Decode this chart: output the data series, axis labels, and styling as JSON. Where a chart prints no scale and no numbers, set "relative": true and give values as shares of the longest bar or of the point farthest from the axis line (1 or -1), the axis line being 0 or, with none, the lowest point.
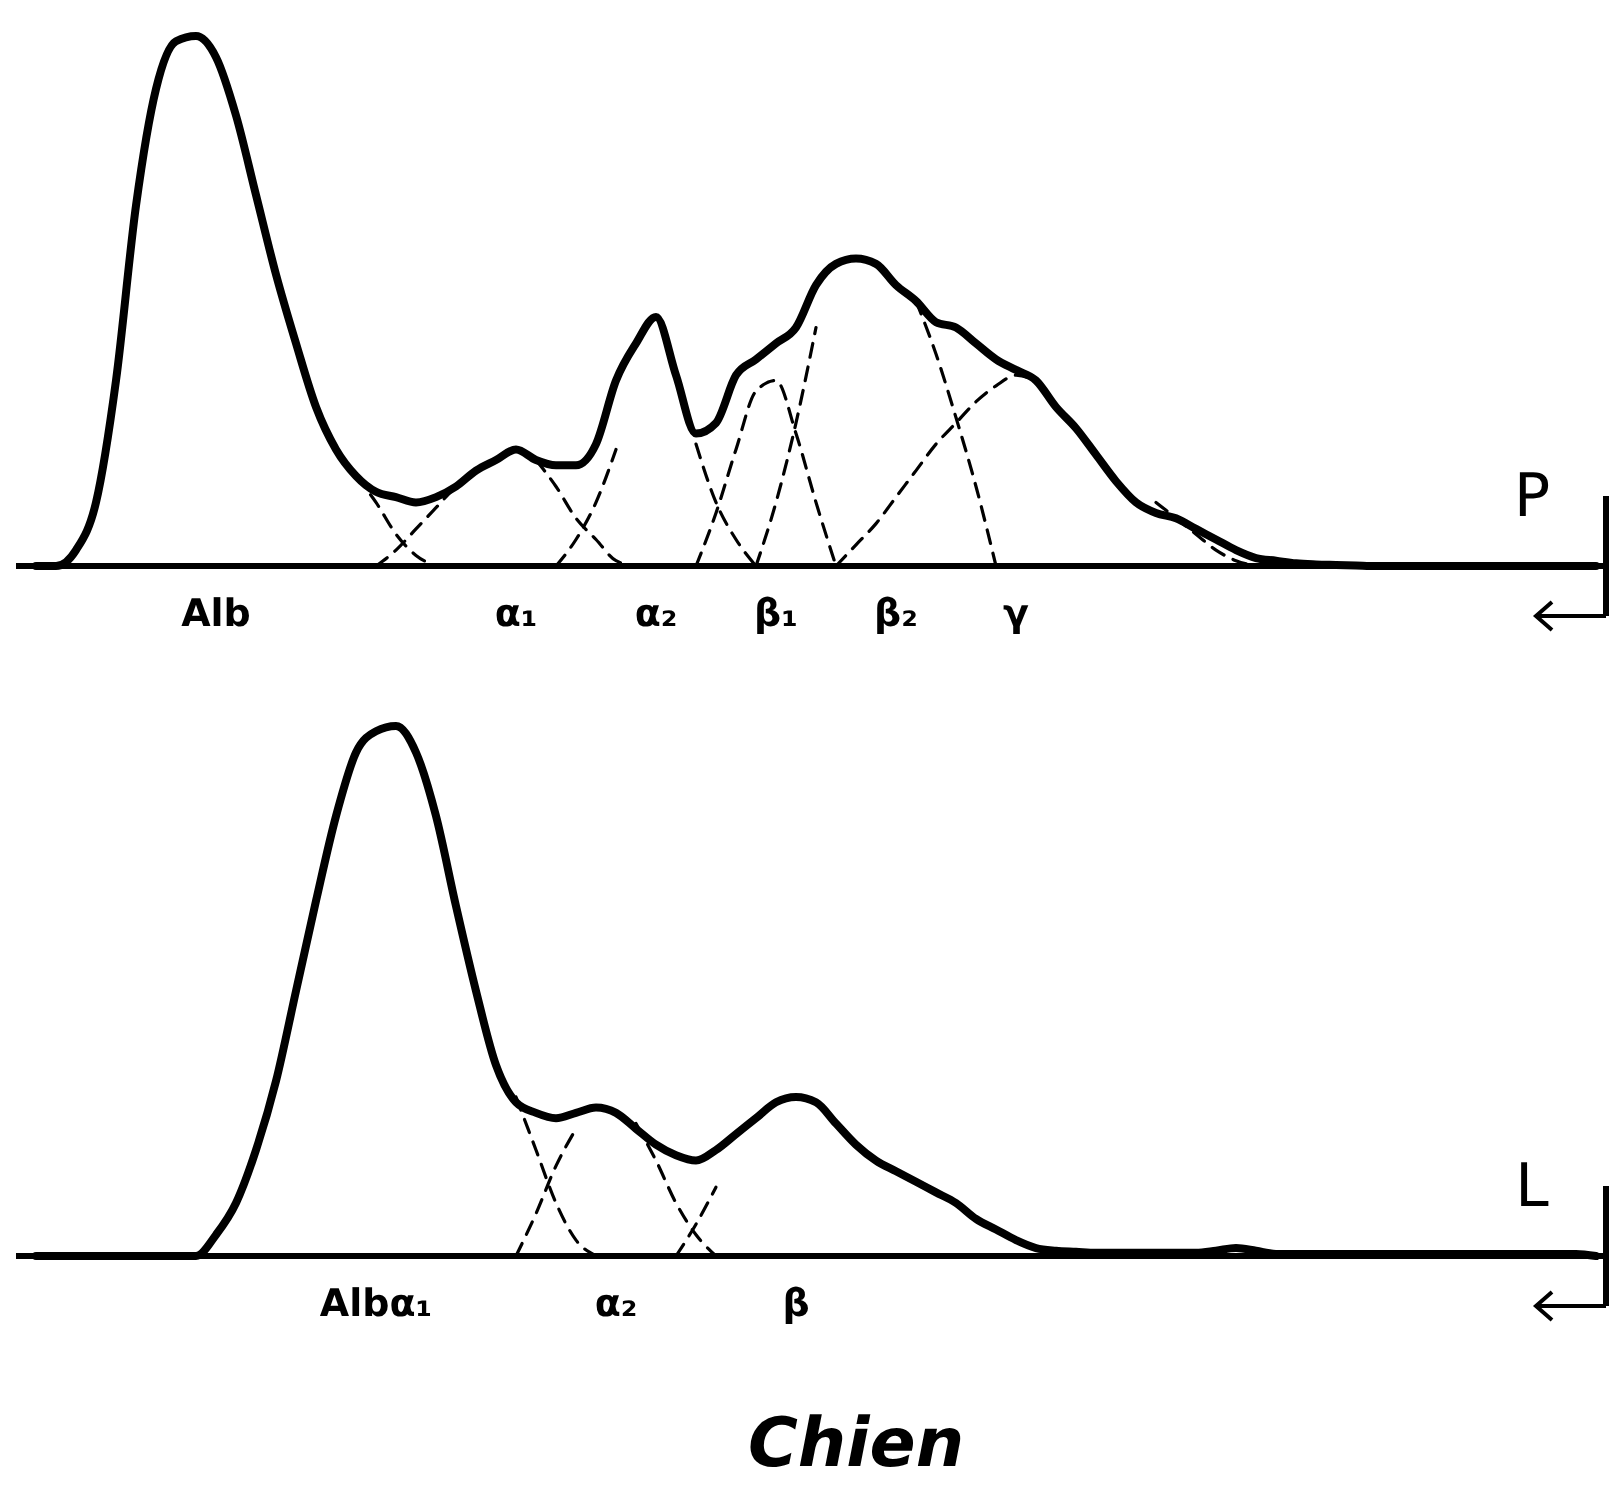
{
  "chart_data": [
    {
      "type": "line",
      "relative": true,
      "annotations": [
        "P"
      ],
      "categories": [
        null,
        null,
        null,
        null,
        null,
        null,
        null,
        null,
        null,
        "Alb",
        null,
        null,
        null,
        null,
        null,
        null,
        null,
        null,
        null,
        null,
        null,
        null,
        null,
        null,
        "α₁",
        null,
        null,
        null,
        null,
        null,
        null,
        "α₂",
        null,
        null,
        null,
        null,
        null,
        "β₁",
        null,
        null,
        null,
        null,
        null,
        "β₂",
        null,
        null,
        null,
        null,
        null,
        "γ",
        null,
        null,
        null,
        null,
        null,
        null,
        null,
        null,
        null,
        null,
        null,
        null,
        null,
        null,
        null,
        null,
        null,
        null,
        null,
        null,
        null,
        null,
        null,
        null,
        null,
        null,
        null,
        null,
        null
      ],
      "series": [
        {
          "color": "#000000",
          "line_style": "solid",
          "values": [
            0,
            0,
            0.03,
            0.12,
            0.35,
            0.68,
            0.9,
            0.99,
            1.0,
            0.96,
            0.85,
            0.7,
            0.55,
            0.42,
            0.3,
            0.22,
            0.17,
            0.14,
            0.13,
            0.12,
            0.13,
            0.15,
            0.18,
            0.2,
            0.22,
            0.2,
            0.19,
            0.19,
            0.23,
            0.35,
            0.42,
            0.47,
            0.36,
            0.25,
            0.27,
            0.36,
            0.39,
            0.42,
            0.45,
            0.53,
            0.57,
            0.58,
            0.57,
            0.53,
            0.5,
            0.46,
            0.45,
            0.42,
            0.39,
            0.37,
            0.35,
            0.3,
            0.26,
            0.21,
            0.16,
            0.12,
            0.1,
            0.09,
            0.07,
            0.05,
            0.03,
            0.015,
            0.01,
            0.005,
            0.003,
            0.002,
            0.001,
            0,
            0,
            0,
            0,
            0,
            0,
            0,
            0,
            0,
            0,
            0,
            0
          ]
        },
        {
          "color": "#000000",
          "line_style": "dashed",
          "values": [
            null,
            null,
            null,
            null,
            null,
            null,
            null,
            null,
            null,
            null,
            null,
            null,
            null,
            null,
            null,
            null,
            0.17,
            0.12,
            0.06,
            0.02,
            0,
            null,
            null,
            null,
            null,
            null,
            null,
            null,
            null,
            null,
            null,
            null,
            null,
            null,
            null,
            null,
            null,
            null,
            null,
            null,
            null,
            null,
            null,
            null,
            null,
            null,
            null,
            null,
            null,
            null,
            null,
            null,
            null,
            null,
            null,
            null,
            null,
            null,
            null,
            null,
            null,
            null,
            null,
            null,
            null,
            null,
            null,
            null,
            null,
            null,
            null,
            null,
            null,
            null,
            null,
            null,
            null,
            null,
            null
          ]
        },
        {
          "color": "#000000",
          "line_style": "dashed",
          "values": [
            null,
            null,
            null,
            null,
            null,
            null,
            null,
            null,
            null,
            null,
            null,
            null,
            null,
            null,
            null,
            null,
            null,
            0,
            0.03,
            0.07,
            0.11,
            0.15,
            0.18,
            null,
            null,
            0.2,
            0.15,
            0.09,
            0.05,
            0.01,
            0,
            null,
            null,
            null,
            null,
            null,
            null,
            null,
            null,
            null,
            null,
            null,
            null,
            null,
            null,
            null,
            null,
            null,
            null,
            null,
            null,
            null,
            null,
            null,
            null,
            null,
            null,
            null,
            null,
            null,
            null,
            null,
            null,
            null,
            null,
            null,
            null,
            null,
            null,
            null,
            null,
            null,
            null,
            null,
            null,
            null,
            null,
            null,
            null
          ]
        },
        {
          "color": "#000000",
          "line_style": "dashed",
          "values": [
            null,
            null,
            null,
            null,
            null,
            null,
            null,
            null,
            null,
            null,
            null,
            null,
            null,
            null,
            null,
            null,
            null,
            null,
            null,
            null,
            null,
            null,
            null,
            null,
            null,
            null,
            0,
            0.05,
            0.12,
            0.22,
            null,
            null,
            null,
            0.23,
            0.12,
            0.05,
            0,
            null,
            null,
            null,
            null,
            null,
            null,
            null,
            null,
            null,
            null,
            null,
            null,
            null,
            null,
            null,
            null,
            null,
            null,
            null,
            null,
            null,
            null,
            null,
            null,
            null,
            null,
            null,
            null,
            null,
            null,
            null,
            null,
            null,
            null,
            null,
            null,
            null,
            null,
            null,
            null,
            null,
            null
          ]
        },
        {
          "color": "#000000",
          "line_style": "dashed",
          "values": [
            null,
            null,
            null,
            null,
            null,
            null,
            null,
            null,
            null,
            null,
            null,
            null,
            null,
            null,
            null,
            null,
            null,
            null,
            null,
            null,
            null,
            null,
            null,
            null,
            null,
            null,
            null,
            null,
            null,
            null,
            null,
            null,
            null,
            0,
            0.1,
            0.22,
            0.33,
            0.35,
            0.25,
            0.12,
            0,
            null,
            null,
            null,
            null,
            null,
            null,
            null,
            null,
            null,
            null,
            null,
            null,
            null,
            null,
            null,
            null,
            null,
            null,
            null,
            null,
            null,
            null,
            null,
            null,
            null,
            null,
            null,
            null,
            null,
            null,
            null,
            null,
            null,
            null,
            null,
            null,
            null,
            null
          ]
        },
        {
          "color": "#000000",
          "line_style": "dashed",
          "values": [
            null,
            null,
            null,
            null,
            null,
            null,
            null,
            null,
            null,
            null,
            null,
            null,
            null,
            null,
            null,
            null,
            null,
            null,
            null,
            null,
            null,
            null,
            null,
            null,
            null,
            null,
            null,
            null,
            null,
            null,
            null,
            null,
            null,
            null,
            null,
            null,
            0,
            0.12,
            0.27,
            0.45,
            null,
            null,
            null,
            null,
            0.5,
            0.4,
            0.28,
            0.15,
            0,
            null,
            null,
            null,
            null,
            null,
            null,
            null,
            null,
            null,
            null,
            null,
            null,
            null,
            null,
            null,
            null,
            null,
            null,
            null,
            null,
            null,
            null,
            null,
            null,
            null,
            null,
            null,
            null,
            null,
            null
          ]
        },
        {
          "color": "#000000",
          "line_style": "dashed",
          "values": [
            null,
            null,
            null,
            null,
            null,
            null,
            null,
            null,
            null,
            null,
            null,
            null,
            null,
            null,
            null,
            null,
            null,
            null,
            null,
            null,
            null,
            null,
            null,
            null,
            null,
            null,
            null,
            null,
            null,
            null,
            null,
            null,
            null,
            null,
            null,
            null,
            null,
            null,
            null,
            null,
            0,
            0.04,
            0.08,
            0.13,
            0.18,
            0.23,
            0.27,
            0.31,
            0.34,
            0.36,
            0.35,
            null,
            null,
            null,
            null,
            null,
            0.12,
            0.09,
            0.06,
            0.03,
            0.01,
            0,
            null,
            null,
            null,
            null,
            null,
            null,
            null,
            null,
            null,
            null,
            null,
            null,
            null,
            null,
            null,
            null,
            null
          ]
        }
      ]
    },
    {
      "type": "line",
      "relative": true,
      "annotations": [
        "L"
      ],
      "xlabel": "Chien",
      "categories": [
        null,
        null,
        null,
        null,
        null,
        null,
        null,
        null,
        null,
        null,
        null,
        null,
        null,
        null,
        null,
        null,
        null,
        "Albα₁",
        null,
        null,
        null,
        null,
        null,
        null,
        null,
        null,
        null,
        null,
        null,
        "α₂",
        null,
        null,
        null,
        null,
        null,
        null,
        null,
        null,
        "β",
        null,
        null,
        null,
        null,
        null,
        null,
        null,
        null,
        null,
        null,
        null,
        null,
        null,
        null,
        null,
        null,
        null,
        null,
        null,
        null,
        null,
        null,
        null,
        null,
        null,
        null,
        null,
        null,
        null,
        null,
        null,
        null,
        null,
        null,
        null,
        null,
        null,
        null,
        null,
        null
      ],
      "series": [
        {
          "color": "#000000",
          "line_style": "solid",
          "values": [
            0,
            0,
            0,
            0,
            0,
            0,
            0,
            0,
            0,
            0.04,
            0.1,
            0.2,
            0.33,
            0.5,
            0.67,
            0.83,
            0.95,
            0.99,
            1.0,
            0.95,
            0.83,
            0.66,
            0.5,
            0.36,
            0.29,
            0.27,
            0.26,
            0.27,
            0.28,
            0.27,
            0.24,
            0.21,
            0.19,
            0.18,
            0.2,
            0.23,
            0.26,
            0.29,
            0.3,
            0.29,
            0.25,
            0.21,
            0.18,
            0.16,
            0.14,
            0.12,
            0.1,
            0.07,
            0.05,
            0.03,
            0.015,
            0.01,
            0.008,
            0.006,
            0.006,
            0.006,
            0.006,
            0.006,
            0.006,
            0.01,
            0.015,
            0.01,
            0.004,
            0.004,
            0.004,
            0.004,
            0.004,
            0.004,
            0.004,
            0.004,
            0.004,
            0.004,
            0.004,
            0.004,
            0.004,
            0.004,
            0.004,
            0.004,
            0
          ]
        },
        {
          "color": "#000000",
          "line_style": "dashed",
          "values": [
            null,
            null,
            null,
            null,
            null,
            null,
            null,
            null,
            null,
            null,
            null,
            null,
            null,
            null,
            null,
            null,
            null,
            null,
            null,
            null,
            null,
            null,
            null,
            null,
            0.3,
            0.2,
            0.1,
            0.03,
            0,
            null,
            null,
            null,
            null,
            null,
            null,
            null,
            null,
            null,
            null,
            null,
            null,
            null,
            null,
            null,
            null,
            null,
            null,
            null,
            null,
            null,
            null,
            null,
            null,
            null,
            null,
            null,
            null,
            null,
            null,
            null,
            null,
            null,
            null,
            null,
            null,
            null,
            null,
            null,
            null,
            null,
            null,
            null,
            null,
            null,
            null,
            null,
            null,
            null,
            null
          ]
        },
        {
          "color": "#000000",
          "line_style": "dashed",
          "values": [
            null,
            null,
            null,
            null,
            null,
            null,
            null,
            null,
            null,
            null,
            null,
            null,
            null,
            null,
            null,
            null,
            null,
            null,
            null,
            null,
            null,
            null,
            null,
            null,
            0,
            0.08,
            0.17,
            0.24,
            null,
            null,
            0.25,
            0.18,
            0.1,
            0.04,
            0,
            null,
            null,
            null,
            null,
            null,
            null,
            null,
            null,
            null,
            null,
            null,
            null,
            null,
            null,
            null,
            null,
            null,
            null,
            null,
            null,
            null,
            null,
            null,
            null,
            null,
            null,
            null,
            null,
            null,
            null,
            null,
            null,
            null,
            null,
            null,
            null,
            null,
            null,
            null,
            null,
            null,
            null,
            null,
            null
          ]
        },
        {
          "color": "#000000",
          "line_style": "dashed",
          "values": [
            null,
            null,
            null,
            null,
            null,
            null,
            null,
            null,
            null,
            null,
            null,
            null,
            null,
            null,
            null,
            null,
            null,
            null,
            null,
            null,
            null,
            null,
            null,
            null,
            null,
            null,
            null,
            null,
            null,
            null,
            null,
            null,
            0,
            0.06,
            0.13,
            null,
            null,
            null,
            null,
            null,
            null,
            null,
            null,
            null,
            null,
            null,
            null,
            null,
            null,
            null,
            null,
            null,
            null,
            null,
            null,
            null,
            null,
            null,
            null,
            null,
            null,
            null,
            null,
            null,
            null,
            null,
            null,
            null,
            null,
            null,
            null,
            null,
            null,
            null,
            null,
            null,
            null,
            null,
            null
          ]
        }
      ]
    }
  ]
}
